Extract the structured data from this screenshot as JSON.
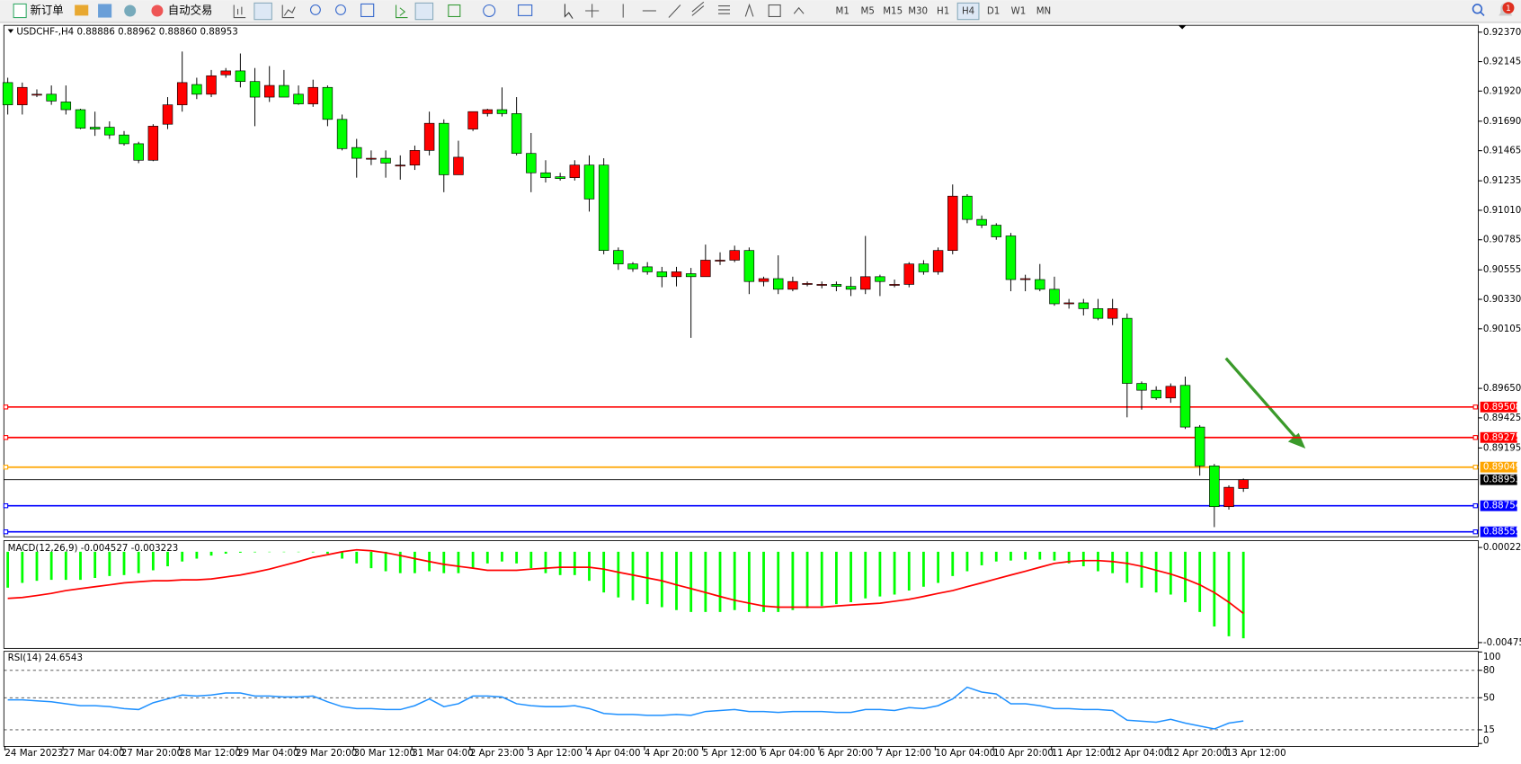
{
  "toolbar": {
    "buttons": [
      "新订单",
      "自动交易"
    ],
    "timeframes": [
      "M1",
      "M5",
      "M15",
      "M30",
      "H1",
      "H4",
      "D1",
      "W1",
      "MN"
    ],
    "active_timeframe": 5,
    "notifications": 1
  },
  "chart_data": [
    {
      "type": "candlestick",
      "title": "USDCHF-,H4",
      "last_labels": [
        "0.88886",
        "0.88962",
        "0.88860",
        "0.88953"
      ],
      "bull_color": "#ff0000",
      "bear_color": "#00ff00",
      "grid": false,
      "ylim": [
        0.88517,
        0.92422
      ],
      "yticks": [
        {
          "value": 0.9237,
          "label": "0.92370"
        },
        0.92145,
        {
          "value": 0.9192,
          "label": "0.91920"
        },
        {
          "value": 0.9169,
          "label": "0.91690"
        },
        0.91465,
        0.91235,
        {
          "value": 0.9101,
          "label": "0.91010"
        },
        0.90785,
        0.90555,
        {
          "value": 0.9033,
          "label": "0.90330"
        },
        0.90105,
        {
          "value": 0.8965,
          "label": "0.89650"
        },
        0.89425,
        0.89195
      ],
      "levels": [
        {
          "value": 0.89508,
          "color": "#ff0000"
        },
        {
          "value": 0.89275,
          "color": "#ff0000"
        },
        {
          "value": 0.89049,
          "color": "#ffa500"
        },
        {
          "value": 0.88754,
          "color": "#0000ff"
        },
        {
          "value": 0.88555,
          "color": "#0000ff"
        }
      ],
      "categories": [
        "24 Mar 2023",
        null,
        null,
        null,
        "27 Mar 04:00",
        null,
        null,
        null,
        "27 Mar 20:00",
        null,
        null,
        null,
        "28 Mar 12:00",
        null,
        null,
        null,
        "29 Mar 04:00",
        null,
        null,
        null,
        "29 Mar 20:00",
        null,
        null,
        null,
        "30 Mar 12:00",
        null,
        null,
        null,
        "31 Mar 04:00",
        null,
        null,
        null,
        "2 Apr 23:00",
        null,
        null,
        null,
        "3 Apr 12:00",
        null,
        null,
        null,
        "4 Apr 04:00",
        null,
        null,
        null,
        "4 Apr 20:00",
        null,
        null,
        null,
        "5 Apr 12:00",
        null,
        null,
        null,
        "6 Apr 04:00",
        null,
        null,
        null,
        "6 Apr 20:00",
        null,
        null,
        null,
        "7 Apr 12:00",
        null,
        null,
        null,
        "10 Apr 04:00",
        null,
        null,
        null,
        "10 Apr 20:00",
        null,
        null,
        null,
        "11 Apr 12:00",
        null,
        null,
        null,
        "12 Apr 04:00",
        null,
        null,
        null,
        "12 Apr 20:00",
        null,
        null,
        null,
        "13 Apr 12:00",
        null
      ],
      "ohlc": [
        [
          0.91985,
          0.92022,
          0.91741,
          0.91815
        ],
        [
          0.91815,
          0.91985,
          0.91741,
          0.91948
        ],
        [
          0.91896,
          0.91933,
          0.91874,
          0.91896
        ],
        [
          0.91896,
          0.91963,
          0.91815,
          0.91844
        ],
        [
          0.91837,
          0.91963,
          0.91741,
          0.91778
        ],
        [
          0.91778,
          0.91785,
          0.9163,
          0.91637
        ],
        [
          0.91644,
          0.91763,
          0.91578,
          0.9163
        ],
        [
          0.91644,
          0.91689,
          0.91555,
          0.91585
        ],
        [
          0.91585,
          0.91615,
          0.91504,
          0.91518
        ],
        [
          0.91518,
          0.91533,
          0.9137,
          0.91392
        ],
        [
          0.91392,
          0.91667,
          0.91385,
          0.91652
        ],
        [
          0.91667,
          0.91874,
          0.9163,
          0.91815
        ],
        [
          0.91815,
          0.92222,
          0.91763,
          0.91985
        ],
        [
          0.9197,
          0.92022,
          0.91859,
          0.91896
        ],
        [
          0.91896,
          0.92081,
          0.91874,
          0.92037
        ],
        [
          0.92044,
          0.92096,
          0.92022,
          0.92074
        ],
        [
          0.92074,
          0.92207,
          0.91948,
          0.91993
        ],
        [
          0.91993,
          0.92096,
          0.91652,
          0.91874
        ],
        [
          0.91874,
          0.92111,
          0.91837,
          0.91963
        ],
        [
          0.91963,
          0.92081,
          0.91874,
          0.91874
        ],
        [
          0.91896,
          0.91963,
          0.91815,
          0.91822
        ],
        [
          0.91822,
          0.92007,
          0.918,
          0.91948
        ],
        [
          0.91948,
          0.91963,
          0.91652,
          0.91704
        ],
        [
          0.91704,
          0.91741,
          0.91467,
          0.91481
        ],
        [
          0.91489,
          0.91555,
          0.91259,
          0.91407
        ],
        [
          0.91407,
          0.91467,
          0.91355,
          0.91407
        ],
        [
          0.91407,
          0.91467,
          0.91259,
          0.9137
        ],
        [
          0.91355,
          0.91429,
          0.91244,
          0.91355
        ],
        [
          0.91355,
          0.91504,
          0.91318,
          0.91467
        ],
        [
          0.91467,
          0.91763,
          0.91429,
          0.91674
        ],
        [
          0.91674,
          0.91704,
          0.91148,
          0.91281
        ],
        [
          0.91281,
          0.91541,
          0.91281,
          0.91415
        ],
        [
          0.9163,
          0.91763,
          0.91615,
          0.91763
        ],
        [
          0.91748,
          0.91785,
          0.91726,
          0.91778
        ],
        [
          0.91778,
          0.91948,
          0.91726,
          0.91748
        ],
        [
          0.91748,
          0.91874,
          0.91429,
          0.91444
        ],
        [
          0.91444,
          0.916,
          0.91148,
          0.91296
        ],
        [
          0.91296,
          0.91392,
          0.91222,
          0.91259
        ],
        [
          0.91266,
          0.91296,
          0.91237,
          0.91252
        ],
        [
          0.91259,
          0.91392,
          0.91237,
          0.91355
        ],
        [
          0.91355,
          0.91429,
          0.91,
          0.91096
        ],
        [
          0.91355,
          0.91407,
          0.90674,
          0.90703
        ],
        [
          0.90703,
          0.90726,
          0.90555,
          0.906
        ],
        [
          0.906,
          0.90614,
          0.9054,
          0.90563
        ],
        [
          0.90578,
          0.90614,
          0.90518,
          0.9054
        ],
        [
          0.9054,
          0.90578,
          0.90422,
          0.90503
        ],
        [
          0.90503,
          0.90578,
          0.90429,
          0.9054
        ],
        [
          0.90526,
          0.9057,
          0.90036,
          0.90503
        ],
        [
          0.90503,
          0.90748,
          0.90503,
          0.90629
        ],
        [
          0.90629,
          0.90689,
          0.90592,
          0.90629
        ],
        [
          0.90629,
          0.9074,
          0.90614,
          0.90703
        ],
        [
          0.90703,
          0.90726,
          0.9037,
          0.90466
        ],
        [
          0.90466,
          0.90503,
          0.90429,
          0.90488
        ],
        [
          0.90488,
          0.90666,
          0.9037,
          0.90407
        ],
        [
          0.90407,
          0.90503,
          0.90392,
          0.90466
        ],
        [
          0.90451,
          0.90466,
          0.90429,
          0.90451
        ],
        [
          0.90444,
          0.90466,
          0.90414,
          0.90444
        ],
        [
          0.90444,
          0.90466,
          0.90392,
          0.90429
        ],
        [
          0.90429,
          0.90503,
          0.90355,
          0.90407
        ],
        [
          0.90407,
          0.90814,
          0.9037,
          0.90503
        ],
        [
          0.90503,
          0.90518,
          0.90355,
          0.90466
        ],
        [
          0.90444,
          0.90481,
          0.90422,
          0.90444
        ],
        [
          0.90444,
          0.90614,
          0.90422,
          0.906
        ],
        [
          0.906,
          0.90629,
          0.90518,
          0.9054
        ],
        [
          0.9054,
          0.90726,
          0.90518,
          0.90703
        ],
        [
          0.90703,
          0.91207,
          0.90674,
          0.91118
        ],
        [
          0.91118,
          0.91133,
          0.90911,
          0.9094
        ],
        [
          0.9094,
          0.9097,
          0.90874,
          0.90896
        ],
        [
          0.90896,
          0.90911,
          0.90785,
          0.90807
        ],
        [
          0.90814,
          0.90837,
          0.90392,
          0.90481
        ],
        [
          0.90488,
          0.90518,
          0.90392,
          0.90488
        ],
        [
          0.90481,
          0.906,
          0.90392,
          0.90407
        ],
        [
          0.90407,
          0.90503,
          0.90281,
          0.90296
        ],
        [
          0.90303,
          0.90333,
          0.90259,
          0.90303
        ],
        [
          0.90303,
          0.90333,
          0.90207,
          0.90259
        ],
        [
          0.90259,
          0.90333,
          0.9017,
          0.90185
        ],
        [
          0.90185,
          0.90333,
          0.90133,
          0.90259
        ],
        [
          0.90185,
          0.90222,
          0.89429,
          0.89688
        ],
        [
          0.89688,
          0.89703,
          0.89488,
          0.89636
        ],
        [
          0.89636,
          0.89666,
          0.89562,
          0.89577
        ],
        [
          0.89577,
          0.89688,
          0.8954,
          0.89666
        ],
        [
          0.89673,
          0.8974,
          0.8934,
          0.89355
        ],
        [
          0.89355,
          0.8937,
          0.88984,
          0.89058
        ],
        [
          0.89058,
          0.89073,
          0.88591,
          0.88747
        ],
        [
          0.88747,
          0.8891,
          0.88725,
          0.88895
        ],
        [
          0.88886,
          0.88962,
          0.8886,
          0.88953
        ]
      ]
    },
    {
      "type": "macd",
      "title": "MACD(12,26,9)",
      "ylim": [
        -0.004753,
        0.000224
      ],
      "yticks": [
        0.000224,
        -0.004753
      ],
      "histogram": {
        "color": "#00ff00",
        "values": [
          -0.00188,
          -0.00163,
          -0.00152,
          -0.00147,
          -0.00147,
          -0.00147,
          -0.00137,
          -0.00127,
          -0.00122,
          -0.00112,
          -0.00097,
          -0.00076,
          -0.00051,
          -0.00036,
          -0.0002,
          -0.0001,
          -5e-05,
          -3e-05,
          -2e-05,
          -2e-05,
          -2e-05,
          -3e-05,
          -0.0001,
          -0.00036,
          -0.00061,
          -0.00086,
          -0.00102,
          -0.00112,
          -0.00112,
          -0.00102,
          -0.00112,
          -0.00112,
          -0.00086,
          -0.00061,
          -0.00051,
          -0.00061,
          -0.00086,
          -0.00112,
          -0.00122,
          -0.00122,
          -0.00152,
          -0.00213,
          -0.00239,
          -0.00254,
          -0.00274,
          -0.0029,
          -0.00305,
          -0.00315,
          -0.00315,
          -0.00315,
          -0.00305,
          -0.00315,
          -0.00315,
          -0.00315,
          -0.00305,
          -0.00295,
          -0.00284,
          -0.00274,
          -0.00264,
          -0.00244,
          -0.00234,
          -0.00224,
          -0.00203,
          -0.00183,
          -0.00163,
          -0.00127,
          -0.00102,
          -0.00071,
          -0.00051,
          -0.00046,
          -0.00041,
          -0.00041,
          -0.00046,
          -0.00061,
          -0.00076,
          -0.00102,
          -0.00112,
          -0.00163,
          -0.00188,
          -0.00213,
          -0.00224,
          -0.00264,
          -0.00315,
          -0.00391,
          -0.00442,
          -0.004527
        ]
      },
      "signal": {
        "color": "#ff0000",
        "values": [
          -0.00244,
          -0.00239,
          -0.00229,
          -0.00218,
          -0.00203,
          -0.00193,
          -0.00183,
          -0.00173,
          -0.00163,
          -0.00157,
          -0.00152,
          -0.00152,
          -0.00147,
          -0.00147,
          -0.00142,
          -0.00132,
          -0.00122,
          -0.00107,
          -0.00091,
          -0.00071,
          -0.00051,
          -0.0003,
          -0.00015,
          0,
          0.0001,
          5e-05,
          -5e-05,
          -0.0002,
          -0.00036,
          -0.00051,
          -0.00066,
          -0.00076,
          -0.00086,
          -0.00097,
          -0.00097,
          -0.00097,
          -0.00091,
          -0.00086,
          -0.00081,
          -0.00081,
          -0.00081,
          -0.00091,
          -0.00107,
          -0.00122,
          -0.00137,
          -0.00152,
          -0.00173,
          -0.00193,
          -0.00213,
          -0.00234,
          -0.00254,
          -0.00269,
          -0.00284,
          -0.0029,
          -0.0029,
          -0.0029,
          -0.0029,
          -0.00284,
          -0.00279,
          -0.00274,
          -0.00269,
          -0.00259,
          -0.00249,
          -0.00234,
          -0.00218,
          -0.00203,
          -0.00183,
          -0.00163,
          -0.00142,
          -0.00122,
          -0.00102,
          -0.00081,
          -0.00061,
          -0.00051,
          -0.00046,
          -0.00046,
          -0.00051,
          -0.00061,
          -0.00076,
          -0.00097,
          -0.00117,
          -0.00142,
          -0.00173,
          -0.00213,
          -0.00264,
          -0.003223
        ]
      }
    },
    {
      "type": "line",
      "title": "RSI(14)",
      "ylim": [
        0,
        100
      ],
      "yticks": [
        100,
        80,
        50,
        15,
        0
      ],
      "levels": [
        80,
        50,
        15
      ],
      "color": "#1e90ff",
      "values": [
        47.7,
        47.7,
        46.7,
        45.6,
        43.5,
        41.4,
        41.4,
        40.3,
        38.2,
        37.1,
        44.5,
        48.8,
        53.0,
        51.9,
        53.0,
        55.2,
        55.2,
        51.9,
        51.9,
        50.9,
        50.9,
        51.9,
        45.6,
        40.3,
        38.2,
        38.2,
        37.1,
        37.1,
        41.4,
        48.8,
        40.3,
        43.5,
        51.9,
        51.9,
        50.9,
        43.5,
        41.4,
        40.3,
        40.3,
        41.4,
        38.2,
        32.9,
        31.8,
        31.8,
        30.8,
        30.8,
        31.8,
        30.8,
        35.0,
        36.1,
        37.1,
        35.0,
        35.0,
        33.9,
        35.0,
        35.0,
        35.0,
        33.9,
        33.9,
        37.1,
        37.1,
        36.1,
        39.2,
        38.2,
        41.4,
        48.8,
        61.5,
        56.2,
        54.1,
        43.5,
        43.5,
        41.4,
        38.2,
        38.2,
        37.1,
        37.1,
        36.1,
        25.5,
        24.4,
        23.3,
        26.5,
        22.3,
        19.1,
        15.9,
        22.3,
        24.6543
      ]
    }
  ]
}
